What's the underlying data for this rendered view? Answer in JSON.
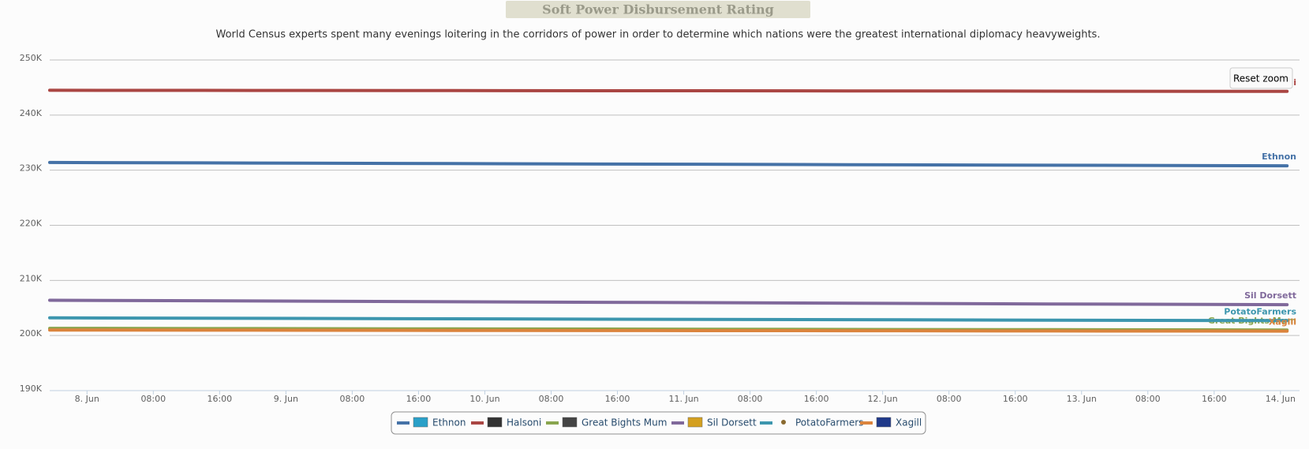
{
  "chart_data": {
    "type": "line",
    "title": "Soft Power Disbursement Rating",
    "subtitle": "World Census experts spent many evenings loitering in the corridors of power in order to determine which nations were the greatest international diplomacy heavyweights.",
    "reset_button": "Reset zoom",
    "x": [
      -4.5,
      20,
      44,
      68,
      92,
      116,
      144.8
    ],
    "xlim": [
      -4.5,
      146.3
    ],
    "xticks": [
      {
        "value": 0,
        "label": "8. Jun"
      },
      {
        "value": 8,
        "label": "08:00"
      },
      {
        "value": 16,
        "label": "16:00"
      },
      {
        "value": 24,
        "label": "9. Jun"
      },
      {
        "value": 32,
        "label": "08:00"
      },
      {
        "value": 40,
        "label": "16:00"
      },
      {
        "value": 48,
        "label": "10. Jun"
      },
      {
        "value": 56,
        "label": "08:00"
      },
      {
        "value": 64,
        "label": "16:00"
      },
      {
        "value": 72,
        "label": "11. Jun"
      },
      {
        "value": 80,
        "label": "08:00"
      },
      {
        "value": 88,
        "label": "16:00"
      },
      {
        "value": 96,
        "label": "12. Jun"
      },
      {
        "value": 104,
        "label": "08:00"
      },
      {
        "value": 112,
        "label": "16:00"
      },
      {
        "value": 120,
        "label": "13. Jun"
      },
      {
        "value": 128,
        "label": "08:00"
      },
      {
        "value": 136,
        "label": "16:00"
      },
      {
        "value": 144,
        "label": "14. Jun"
      }
    ],
    "ylim": [
      190000,
      250000
    ],
    "yticks": [
      {
        "value": 190000,
        "label": "190K"
      },
      {
        "value": 200000,
        "label": "200K"
      },
      {
        "value": 210000,
        "label": "210K"
      },
      {
        "value": 220000,
        "label": "220K"
      },
      {
        "value": 230000,
        "label": "230K"
      },
      {
        "value": 240000,
        "label": "240K"
      },
      {
        "value": 250000,
        "label": "250K"
      }
    ],
    "grid": true,
    "legend": "bottom",
    "series": [
      {
        "name": "Ethnon",
        "color": "#4572A7",
        "values": [
          231400,
          231300,
          231200,
          231100,
          231000,
          230900,
          230800
        ]
      },
      {
        "name": "Halsoni",
        "color": "#AA4643",
        "values": [
          244500,
          244470,
          244440,
          244410,
          244380,
          244340,
          244300
        ]
      },
      {
        "name": "Great Bights Mum",
        "color": "#89A54E",
        "values": [
          201300,
          201250,
          201200,
          201150,
          201100,
          201050,
          201000
        ]
      },
      {
        "name": "Sil Dorsett",
        "color": "#80699B",
        "values": [
          206400,
          206270,
          206130,
          206000,
          205870,
          205730,
          205600
        ]
      },
      {
        "name": "PotatoFarmers",
        "color": "#3D96AE",
        "values": [
          203200,
          203120,
          203030,
          202950,
          202870,
          202780,
          202700
        ]
      },
      {
        "name": "Xagill",
        "color": "#DB843D",
        "values": [
          201000,
          200970,
          200930,
          200900,
          200870,
          200830,
          200800
        ]
      }
    ]
  }
}
